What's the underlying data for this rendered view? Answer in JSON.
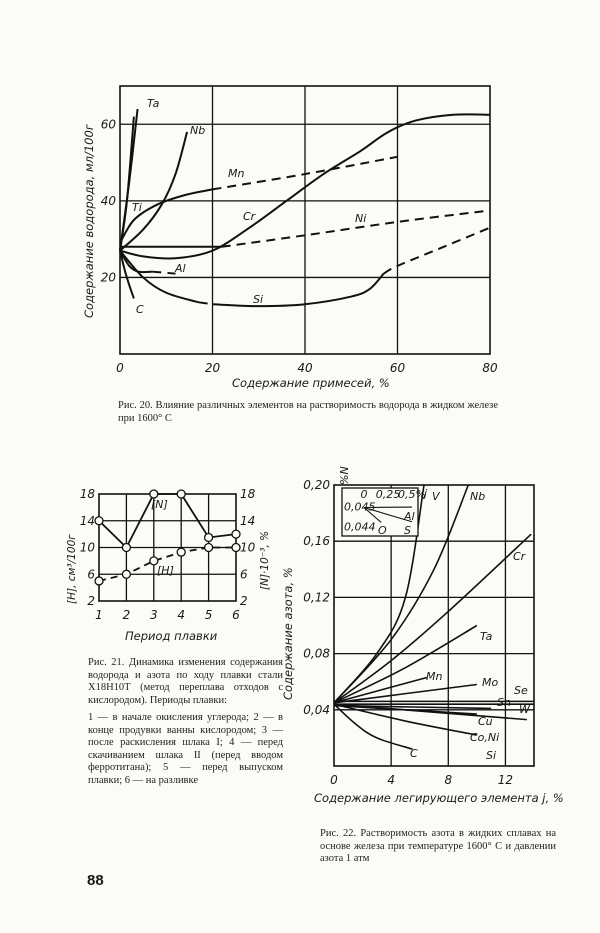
{
  "page_number": "88",
  "chart_data": [
    {
      "id": "fig20",
      "type": "line",
      "xlabel": "Содержание примесей, %",
      "ylabel": "Содержание водорода, мл/100г",
      "xlim": [
        0,
        80
      ],
      "ylim": [
        0,
        70
      ],
      "xticks": [
        "0",
        "20",
        "40",
        "60",
        "80"
      ],
      "xtick_values": [
        0,
        20,
        40,
        60,
        80
      ],
      "yticks": [
        "20",
        "40",
        "60"
      ],
      "ytick_values": [
        20,
        40,
        60
      ],
      "grid": true,
      "caption": "Рис. 20. Влияние различных элементов на растворимость водорода в жидком железе при 1600° С",
      "series": [
        {
          "name": "Ta",
          "segments": [
            {
              "dashed": false,
              "points": [
                [
                  0,
                  27
                ],
                [
                  2,
                  45
                ],
                [
                  3.8,
                  64
                ]
              ]
            },
            {
              "dashed": false,
              "points": [
                [
                  0,
                  27
                ],
                [
                  1.5,
                  40
                ],
                [
                  3,
                  62
                ]
              ]
            }
          ]
        },
        {
          "name": "Nb",
          "segments": [
            {
              "dashed": false,
              "points": [
                [
                  0,
                  27
                ],
                [
                  5,
                  32.5
                ],
                [
                  9,
                  39
                ],
                [
                  12,
                  47
                ],
                [
                  14.5,
                  58
                ]
              ]
            }
          ]
        },
        {
          "name": "Ti",
          "segments": [
            {
              "dashed": false,
              "points": [
                [
                  0,
                  29
                ],
                [
                  3,
                  35
                ],
                [
                  8,
                  39
                ],
                [
                  14,
                  41.5
                ],
                [
                  20,
                  43
                ]
              ]
            }
          ]
        },
        {
          "name": "Mn",
          "segments": [
            {
              "dashed": true,
              "points": [
                [
                  20,
                  43
                ],
                [
                  40,
                  47
                ],
                [
                  60,
                  51.5
                ]
              ]
            }
          ]
        },
        {
          "name": "Cr",
          "segments": [
            {
              "dashed": false,
              "points": [
                [
                  0,
                  27
                ],
                [
                  5,
                  25.5
                ],
                [
                  12,
                  25
                ],
                [
                  20,
                  27
                ],
                [
                  28,
                  33
                ],
                [
                  36,
                  40
                ],
                [
                  44,
                  47
                ],
                [
                  52,
                  53
                ],
                [
                  58,
                  58
                ],
                [
                  64,
                  61
                ],
                [
                  72,
                  62.5
                ],
                [
                  80,
                  62.5
                ]
              ]
            }
          ]
        },
        {
          "name": "Ni",
          "segments": [
            {
              "dashed": false,
              "points": [
                [
                  0,
                  28
                ],
                [
                  22,
                  28
                ]
              ]
            },
            {
              "dashed": true,
              "points": [
                [
                  22,
                  28
                ],
                [
                  40,
                  31
                ],
                [
                  60,
                  34.5
                ],
                [
                  80,
                  37.5
                ]
              ]
            }
          ]
        },
        {
          "name": "Al",
          "segments": [
            {
              "dashed": false,
              "points": [
                [
                  0,
                  27
                ],
                [
                  2,
                  23
                ],
                [
                  4,
                  21.5
                ],
                [
                  7,
                  21.5
                ]
              ]
            },
            {
              "dashed": true,
              "points": [
                [
                  7,
                  21.5
                ],
                [
                  12,
                  21
                ]
              ]
            }
          ]
        },
        {
          "name": "Si",
          "segments": [
            {
              "dashed": false,
              "points": [
                [
                  0,
                  27
                ],
                [
                  5,
                  20
                ],
                [
                  10,
                  16
                ],
                [
                  17,
                  13.5
                ]
              ]
            },
            {
              "dashed": true,
              "points": [
                [
                  17,
                  13.5
                ],
                [
                  20,
                  13
                ]
              ]
            },
            {
              "dashed": false,
              "points": [
                [
                  20,
                  13
                ],
                [
                  30,
                  12.5
                ],
                [
                  40,
                  13
                ],
                [
                  50,
                  15
                ],
                [
                  54,
                  17
                ],
                [
                  57,
                  21
                ]
              ]
            },
            {
              "dashed": true,
              "points": [
                [
                  57,
                  21
                ],
                [
                  60,
                  23
                ],
                [
                  70,
                  28
                ],
                [
                  80,
                  33
                ]
              ]
            }
          ]
        },
        {
          "name": "C",
          "segments": [
            {
              "dashed": false,
              "points": [
                [
                  0,
                  27
                ],
                [
                  1,
                  22
                ],
                [
                  2,
                  18
                ],
                [
                  3,
                  14.5
                ]
              ]
            }
          ]
        }
      ]
    },
    {
      "id": "fig21",
      "type": "line",
      "xlabel": "Период плавки",
      "ylabel_left": "[H], см³/100г",
      "ylabel_right": "[N]·10⁻³, %",
      "xlim": [
        1,
        6
      ],
      "ylim": [
        2,
        18
      ],
      "xticks": [
        "1",
        "2",
        "3",
        "4",
        "5",
        "6"
      ],
      "xtick_values": [
        1,
        2,
        3,
        4,
        5,
        6
      ],
      "yticks": [
        "2",
        "6",
        "10",
        "14",
        "18"
      ],
      "ytick_values": [
        2,
        6,
        10,
        14,
        18
      ],
      "grid": true,
      "caption_title": "Рис. 21. Динамика изменения содержания водорода и азота по ходу плавки стали Х18Н10Т (метод переплава отходов с кислородом). Периоды плавки:",
      "caption_items": "1 — в начале окисления углерода; 2 — в конце продувки ванны кислородом; 3 — после раскисления шлака I; 4 — перед скачиванием шлака II (перед вводом ферротитана); 5 — перед выпуском плавки; 6 — на разливке",
      "series": [
        {
          "name": "[N]",
          "dashed": false,
          "x": [
            1,
            2,
            3,
            4,
            5,
            6
          ],
          "y": [
            14,
            10,
            18,
            18,
            11.5,
            12
          ]
        },
        {
          "name": "[H]",
          "dashed": true,
          "x": [
            1,
            2,
            3,
            4,
            5,
            6
          ],
          "y": [
            5,
            6,
            8,
            9.3,
            10,
            10
          ]
        }
      ]
    },
    {
      "id": "fig22",
      "type": "line",
      "xlabel": "Содержание легирующего элемента j, %",
      "ylabel": "Содержание азота, %",
      "xlim": [
        0,
        14
      ],
      "ylim": [
        0,
        0.2
      ],
      "xticks": [
        "0",
        "4",
        "8",
        "12"
      ],
      "xtick_values": [
        0,
        4,
        8,
        12
      ],
      "yticks": [
        "0,04",
        "0,08",
        "0,12",
        "0,16",
        "0,20"
      ],
      "ytick_values": [
        0.04,
        0.08,
        0.12,
        0.16,
        0.2
      ],
      "grid": true,
      "caption": "Рис. 22. Растворимость азота в жидких сплавах на основе железа при температуре 1600° С и давлении азота 1 атм",
      "series": [
        {
          "name": "V",
          "points": [
            [
              0,
              0.045
            ],
            [
              3,
              0.08
            ],
            [
              5,
              0.12
            ],
            [
              6.3,
              0.2
            ]
          ]
        },
        {
          "name": "Nb",
          "points": [
            [
              0,
              0.045
            ],
            [
              4,
              0.09
            ],
            [
              7,
              0.14
            ],
            [
              9.4,
              0.2
            ]
          ]
        },
        {
          "name": "Cr",
          "points": [
            [
              0,
              0.045
            ],
            [
              4,
              0.075
            ],
            [
              8,
              0.11
            ],
            [
              13.8,
              0.165
            ]
          ]
        },
        {
          "name": "Ta",
          "points": [
            [
              0,
              0.045
            ],
            [
              5,
              0.07
            ],
            [
              10,
              0.1
            ]
          ]
        },
        {
          "name": "Mn",
          "points": [
            [
              0,
              0.045
            ],
            [
              6.5,
              0.063
            ]
          ]
        },
        {
          "name": "Mo",
          "points": [
            [
              0,
              0.045
            ],
            [
              10,
              0.058
            ]
          ]
        },
        {
          "name": "Se",
          "points": [
            [
              0,
              0.046
            ],
            [
              14,
              0.046
            ]
          ]
        },
        {
          "name": "W",
          "points": [
            [
              0,
              0.044
            ],
            [
              14,
              0.044
            ]
          ]
        },
        {
          "name": "Sn",
          "points": [
            [
              0,
              0.043
            ],
            [
              11,
              0.041
            ]
          ]
        },
        {
          "name": "Cu",
          "points": [
            [
              0,
              0.043
            ],
            [
              10,
              0.037
            ]
          ]
        },
        {
          "name": "Co,Ni",
          "points": [
            [
              0,
              0.044
            ],
            [
              13.5,
              0.033
            ]
          ]
        },
        {
          "name": "Si",
          "points": [
            [
              0,
              0.044
            ],
            [
              5,
              0.032
            ],
            [
              10,
              0.022
            ]
          ]
        },
        {
          "name": "C",
          "points": [
            [
              0,
              0.044
            ],
            [
              1.5,
              0.03
            ],
            [
              3,
              0.02
            ],
            [
              5.5,
              0.012
            ]
          ]
        }
      ],
      "inset": {
        "xlabel": "j",
        "ylabel": "%N",
        "xlim": [
          0,
          0.5
        ],
        "ylim": [
          0.0435,
          0.0455
        ],
        "xticks": [
          "0",
          "0,25",
          "0,5%"
        ],
        "xtick_values": [
          0,
          0.25,
          0.5
        ],
        "yticks": [
          "0,045",
          "0,044"
        ],
        "ytick_values": [
          0.045,
          0.044
        ],
        "series": [
          {
            "name": "Al",
            "points": [
              [
                0,
                0.045
              ],
              [
                0.5,
                0.04503
              ]
            ]
          },
          {
            "name": "S",
            "points": [
              [
                0,
                0.045
              ],
              [
                0.5,
                0.04405
              ]
            ]
          },
          {
            "name": "O",
            "points": [
              [
                0,
                0.045
              ],
              [
                0.18,
                0.044
              ]
            ]
          }
        ]
      }
    }
  ]
}
